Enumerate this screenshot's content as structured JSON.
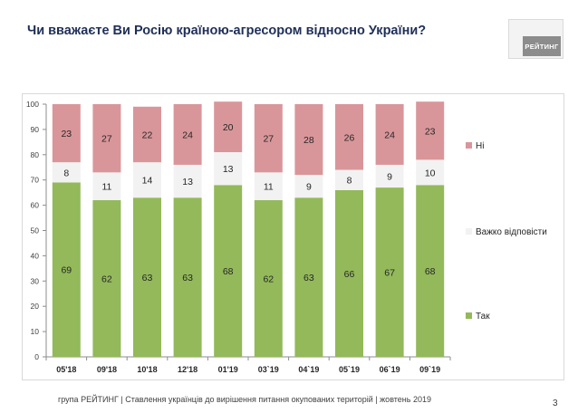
{
  "header": {
    "title": "Чи вважаєте Ви Росію країною-агресором відносно України?",
    "logo_text": "РЕЙТИНГ"
  },
  "footer": {
    "text": "група РЕЙТИНГ | Ставлення українців до вирішення питання окупованих територій  | жовтень 2019",
    "page_number": "3"
  },
  "colors": {
    "yes": "#93b95a",
    "hard_to_say": "#f2f2f2",
    "no": "#d9969a"
  },
  "chart_data": {
    "type": "bar",
    "stacked": true,
    "categories": [
      "05'18",
      "09'18",
      "10'18",
      "12'18",
      "01'19",
      "03`19",
      "04`19",
      "05`19",
      "06`19",
      "09`19"
    ],
    "series": [
      {
        "name": "Так",
        "color": "#93b95a",
        "values": [
          69,
          62,
          63,
          63,
          68,
          62,
          63,
          66,
          67,
          68
        ]
      },
      {
        "name": "Важко відповісти",
        "color": "#f2f2f2",
        "values": [
          8,
          11,
          14,
          13,
          13,
          11,
          9,
          8,
          9,
          10
        ]
      },
      {
        "name": "Ні",
        "color": "#d9969a",
        "values": [
          23,
          27,
          22,
          24,
          20,
          27,
          28,
          26,
          24,
          23
        ]
      }
    ],
    "ylim": [
      0,
      100
    ],
    "yticks": [
      0,
      10,
      20,
      30,
      40,
      50,
      60,
      70,
      80,
      90,
      100
    ],
    "legend_position": "right",
    "legend_order": [
      "Ні",
      "Важко відповісти",
      "Так"
    ],
    "grid": false
  }
}
